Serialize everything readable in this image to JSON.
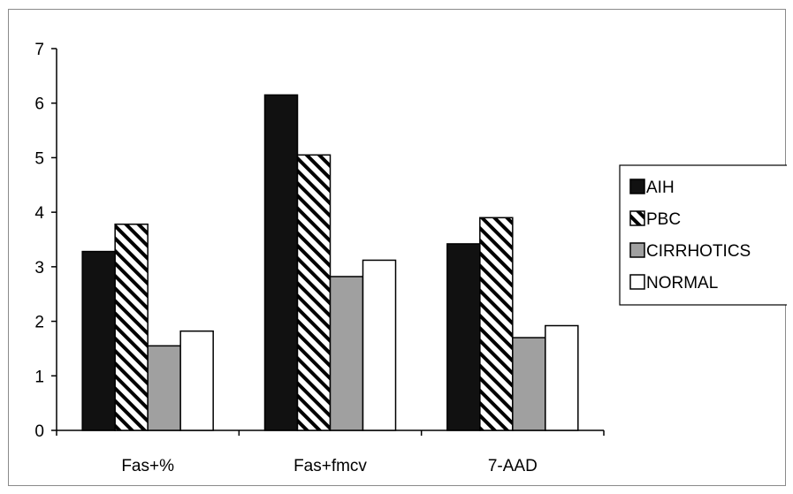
{
  "chart_data": {
    "type": "bar",
    "categories": [
      "Fas+%",
      "Fas+fmcv",
      "7-AAD"
    ],
    "series": [
      {
        "name": "AIH",
        "values": [
          3.28,
          6.15,
          3.42
        ],
        "color": "#111111",
        "pattern": "solid"
      },
      {
        "name": "PBC",
        "values": [
          3.78,
          5.05,
          3.9
        ],
        "color": "#ffffff",
        "pattern": "diagonal-hatch"
      },
      {
        "name": "CIRRHOTICS",
        "values": [
          1.55,
          2.82,
          1.7
        ],
        "color": "#a0a0a0",
        "pattern": "solid"
      },
      {
        "name": "NORMAL",
        "values": [
          1.82,
          3.12,
          1.92
        ],
        "color": "#ffffff",
        "pattern": "solid"
      }
    ],
    "ylim": [
      0,
      7
    ],
    "yticks": [
      "0",
      "1",
      "2",
      "3",
      "4",
      "5",
      "6",
      "7"
    ],
    "grid": false,
    "legend_position": "right"
  }
}
